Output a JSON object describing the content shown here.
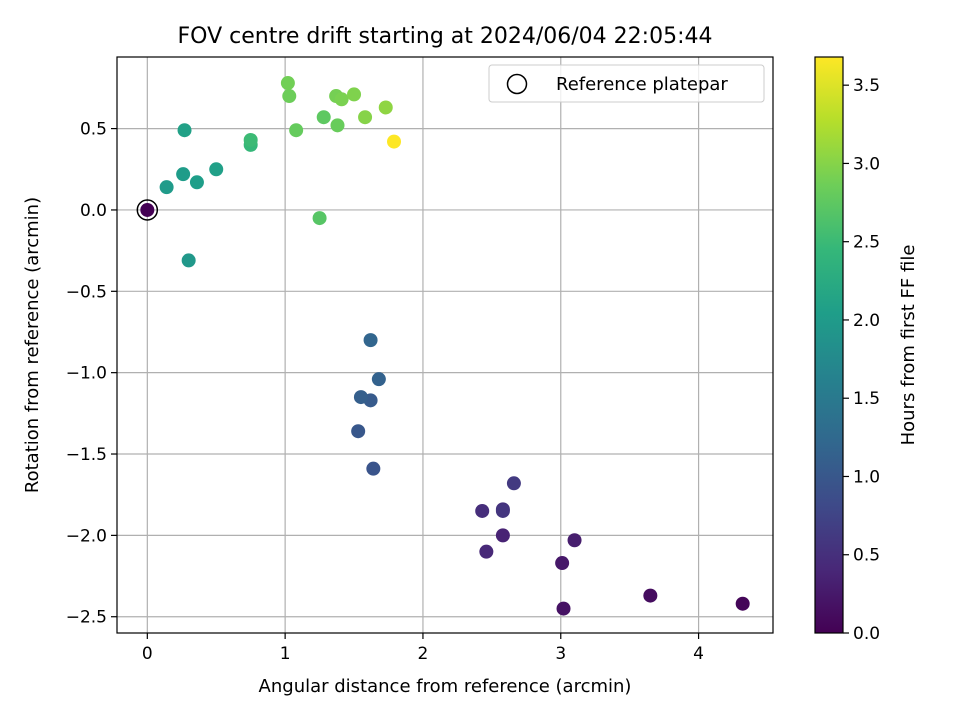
{
  "chart_data": {
    "type": "scatter",
    "title": "FOV centre drift starting at 2024/06/04 22:05:44",
    "xlabel": "Angular distance from reference (arcmin)",
    "ylabel": "Rotation from reference (arcmin)",
    "xlim": [
      -0.22,
      4.54
    ],
    "ylim": [
      -2.6,
      0.94
    ],
    "xticks": [
      0,
      1,
      2,
      3,
      4
    ],
    "xtick_labels": [
      "0",
      "1",
      "2",
      "3",
      "4"
    ],
    "yticks": [
      0.5,
      0.0,
      -0.5,
      -1.0,
      -1.5,
      -2.0,
      -2.5
    ],
    "ytick_labels": [
      "0.5",
      "0.0",
      "−0.5",
      "−1.0",
      "−1.5",
      "−2.0",
      "−2.5"
    ],
    "grid": true,
    "legend": {
      "placement": "upper-right",
      "entries": [
        "Reference platepar"
      ]
    },
    "colorbar": {
      "label": "Hours from first FF file",
      "range": [
        0,
        3.68
      ],
      "ticks": [
        0.0,
        0.5,
        1.0,
        1.5,
        2.0,
        2.5,
        3.0,
        3.5
      ],
      "tick_labels": [
        "0.0",
        "0.5",
        "1.0",
        "1.5",
        "2.0",
        "2.5",
        "3.0",
        "3.5"
      ],
      "colormap": "viridis"
    },
    "reference_point": {
      "x": 0,
      "y": 0
    },
    "points": [
      {
        "x": 4.32,
        "y": -2.42,
        "t": 0.05
      },
      {
        "x": 3.65,
        "y": -2.37,
        "t": 0.12
      },
      {
        "x": 3.02,
        "y": -2.45,
        "t": 0.18
      },
      {
        "x": 3.01,
        "y": -2.17,
        "t": 0.24
      },
      {
        "x": 3.1,
        "y": -2.03,
        "t": 0.3
      },
      {
        "x": 2.58,
        "y": -2.0,
        "t": 0.36
      },
      {
        "x": 2.46,
        "y": -2.1,
        "t": 0.42
      },
      {
        "x": 2.43,
        "y": -1.85,
        "t": 0.48
      },
      {
        "x": 2.58,
        "y": -1.84,
        "t": 0.53
      },
      {
        "x": 2.58,
        "y": -1.85,
        "t": 0.58
      },
      {
        "x": 2.66,
        "y": -1.68,
        "t": 0.62
      },
      {
        "x": 1.64,
        "y": -1.59,
        "t": 0.95
      },
      {
        "x": 1.53,
        "y": -1.36,
        "t": 1.0
      },
      {
        "x": 1.62,
        "y": -1.17,
        "t": 1.05
      },
      {
        "x": 1.55,
        "y": -1.15,
        "t": 1.1
      },
      {
        "x": 1.68,
        "y": -1.04,
        "t": 1.15
      },
      {
        "x": 1.62,
        "y": -0.8,
        "t": 1.2
      },
      {
        "x": 0.3,
        "y": -0.31,
        "t": 1.95
      },
      {
        "x": 0.14,
        "y": 0.14,
        "t": 2.0
      },
      {
        "x": 0.26,
        "y": 0.22,
        "t": 2.02
      },
      {
        "x": 0.36,
        "y": 0.17,
        "t": 2.05
      },
      {
        "x": 0.5,
        "y": 0.25,
        "t": 2.08
      },
      {
        "x": 0.27,
        "y": 0.49,
        "t": 2.1
      },
      {
        "x": 0.75,
        "y": 0.4,
        "t": 2.45
      },
      {
        "x": 0.75,
        "y": 0.43,
        "t": 2.5
      },
      {
        "x": 1.25,
        "y": -0.05,
        "t": 2.7
      },
      {
        "x": 1.28,
        "y": 0.57,
        "t": 2.75
      },
      {
        "x": 1.08,
        "y": 0.49,
        "t": 2.8
      },
      {
        "x": 1.38,
        "y": 0.52,
        "t": 2.82
      },
      {
        "x": 1.03,
        "y": 0.7,
        "t": 2.85
      },
      {
        "x": 1.02,
        "y": 0.78,
        "t": 2.88
      },
      {
        "x": 1.37,
        "y": 0.7,
        "t": 2.9
      },
      {
        "x": 1.41,
        "y": 0.68,
        "t": 2.93
      },
      {
        "x": 1.5,
        "y": 0.71,
        "t": 2.96
      },
      {
        "x": 1.58,
        "y": 0.57,
        "t": 3.0
      },
      {
        "x": 1.73,
        "y": 0.63,
        "t": 3.05
      },
      {
        "x": 1.79,
        "y": 0.42,
        "t": 3.68
      }
    ]
  }
}
